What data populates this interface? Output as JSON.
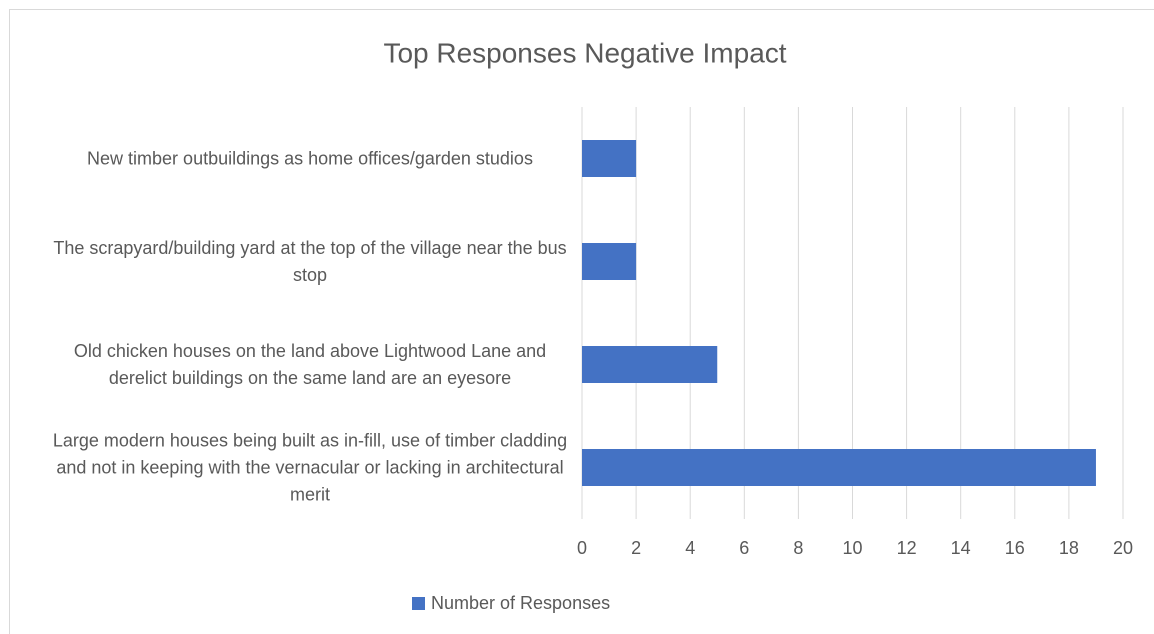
{
  "chart_data": {
    "type": "bar",
    "orientation": "horizontal",
    "title": "Top Responses Negative Impact",
    "categories": [
      "New timber outbuildings as home offices/garden studios",
      "The scrapyard/building yard at the top of the village near the bus stop",
      "Old chicken houses on the land above Lightwood Lane and derelict buildings on the same land are an eyesore",
      "Large modern houses being built as in-fill, use of timber cladding and not in keeping with the vernacular or lacking in architectural merit"
    ],
    "series": [
      {
        "name": "Number of Responses",
        "color": "#4472c4",
        "values": [
          2,
          2,
          5,
          19
        ]
      }
    ],
    "xlim": [
      0,
      20
    ],
    "xticks": [
      0,
      2,
      4,
      6,
      8,
      10,
      12,
      14,
      16,
      18,
      20
    ],
    "grid": true,
    "legend": "bottom"
  }
}
